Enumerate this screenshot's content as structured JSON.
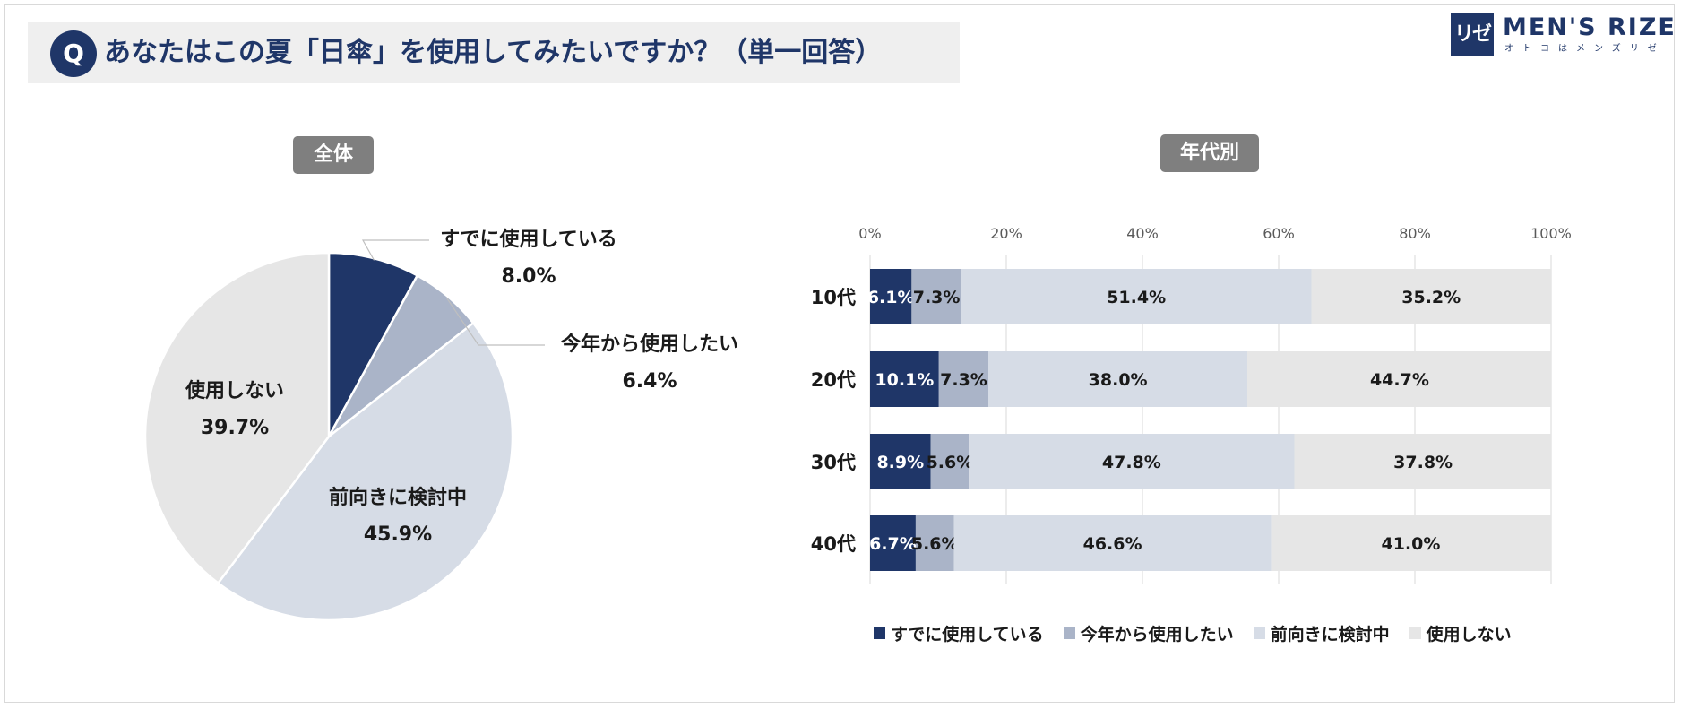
{
  "question": {
    "badge": "Q",
    "text": "あなたはこの夏「日傘」を使用してみたいですか？（単一回答）"
  },
  "logo": {
    "mark": "リゼ",
    "name": "MEN'S RIZE",
    "tagline": "オトコはメンズリゼ"
  },
  "colors": {
    "already": "#1f3668",
    "this_year": "#aab4c8",
    "considering": "#d6dce6",
    "not_use": "#e6e6e6",
    "accent": "#1f3668",
    "tag_bg": "#7f7f7f"
  },
  "chart_data": [
    {
      "type": "pie",
      "title": "全体",
      "categories": [
        "すでに使用している",
        "今年から使用したい",
        "前向きに検討中",
        "使用しない"
      ],
      "values": [
        8.0,
        6.4,
        45.9,
        39.7
      ],
      "value_labels": [
        "8.0%",
        "6.4%",
        "45.9%",
        "39.7%"
      ],
      "label_positions": [
        "outside",
        "outside",
        "inside",
        "inside"
      ]
    },
    {
      "type": "bar",
      "orientation": "horizontal",
      "stacked": true,
      "title": "年代別",
      "categories": [
        "10代",
        "20代",
        "30代",
        "40代"
      ],
      "xlim": [
        0,
        100
      ],
      "xticks": [
        "0%",
        "20%",
        "40%",
        "60%",
        "80%",
        "100%"
      ],
      "grid": true,
      "legend_position": "bottom",
      "series": [
        {
          "name": "すでに使用している",
          "values": [
            6.1,
            10.1,
            8.9,
            6.7
          ],
          "labels": [
            "6.1%",
            "10.1%",
            "8.9%",
            "6.7%"
          ]
        },
        {
          "name": "今年から使用したい",
          "values": [
            7.3,
            7.3,
            5.6,
            5.6
          ],
          "labels": [
            "7.3%",
            "7.3%",
            "5.6%",
            "5.6%"
          ]
        },
        {
          "name": "前向きに検討中",
          "values": [
            51.4,
            38.0,
            47.8,
            46.6
          ],
          "labels": [
            "51.4%",
            "38.0%",
            "47.8%",
            "46.6%"
          ]
        },
        {
          "name": "使用しない",
          "values": [
            35.2,
            44.7,
            37.8,
            41.0
          ],
          "labels": [
            "35.2%",
            "44.7%",
            "37.8%",
            "41.0%"
          ]
        }
      ]
    }
  ]
}
